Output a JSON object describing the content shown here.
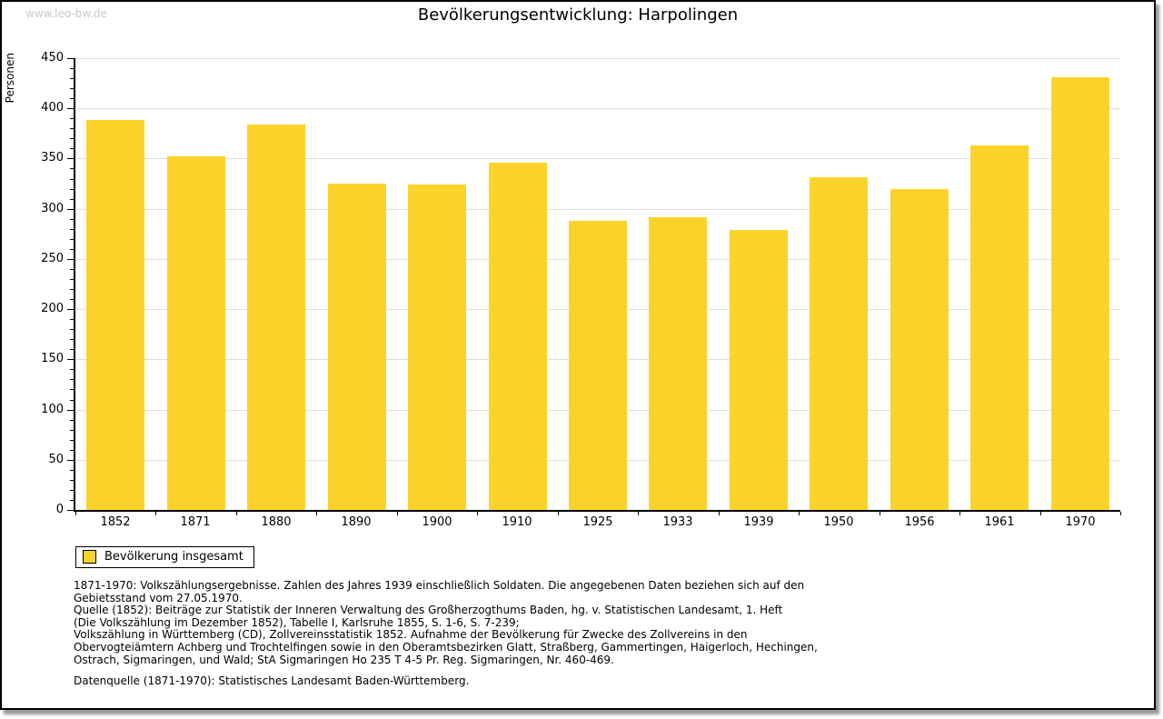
{
  "watermark": "www.leo-bw.de",
  "title": "Bevölkerungsentwicklung: Harpolingen",
  "chart_data": {
    "type": "bar",
    "title": "Bevölkerungsentwicklung: Harpolingen",
    "ylabel": "Personen",
    "xlabel": "",
    "categories": [
      "1852",
      "1871",
      "1880",
      "1890",
      "1900",
      "1910",
      "1925",
      "1933",
      "1939",
      "1950",
      "1956",
      "1961",
      "1970"
    ],
    "series": [
      {
        "name": "Bevölkerung insgesamt",
        "values": [
          388,
          352,
          384,
          325,
          324,
          346,
          288,
          292,
          279,
          331,
          320,
          363,
          431
        ]
      }
    ],
    "ylim": [
      0,
      450
    ],
    "ytick_step": 50,
    "y_minor_tick_step": 10,
    "grid": true,
    "bar_color": "#fcd32b",
    "legend_position": "bottom-left"
  },
  "legend": {
    "label": "Bevölkerung insgesamt",
    "swatch_color": "#fcd32b"
  },
  "footer": {
    "notes_lines": [
      "1871-1970: Volkszählungsergebnisse. Zahlen des Jahres 1939 einschließlich Soldaten. Die angegebenen Daten beziehen sich auf den",
      "Gebietsstand vom 27.05.1970.",
      "Quelle (1852): Beiträge zur Statistik der Inneren Verwaltung des Großherzogthums Baden, hg. v. Statistischen Landesamt, 1. Heft",
      "(Die Volkszählung im Dezember 1852), Tabelle I, Karlsruhe 1855, S. 1-6, S. 7-239;",
      "Volkszählung in Württemberg (CD), Zollvereinsstatistik 1852. Aufnahme der Bevölkerung für Zwecke des Zollvereins in den",
      "Obervogteiämtern Achberg und Trochtelfingen sowie in den Oberamtsbezirken Glatt, Straßberg, Gammertingen, Haigerloch, Hechingen,",
      "Ostrach, Sigmaringen, und Wald; StA Sigmaringen Ho 235 T 4-5 Pr. Reg. Sigmaringen, Nr. 460-469."
    ],
    "datasource": "Datenquelle (1871-1970): Statistisches Landesamt Baden-Württemberg."
  },
  "colors": {
    "bar": "#fcd32b",
    "grid": "#dedede",
    "axis": "#000000",
    "watermark_text": "#c8c8c8",
    "shadow": "#999999"
  }
}
